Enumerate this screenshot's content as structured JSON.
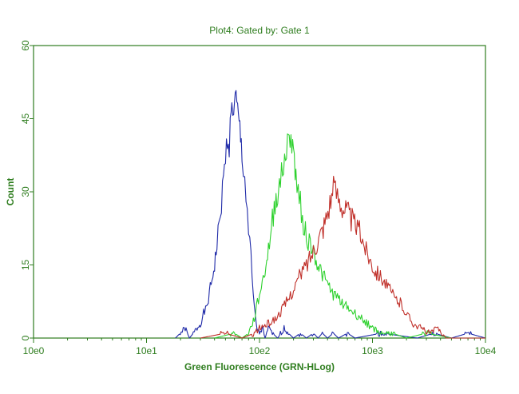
{
  "chart_data": {
    "type": "line",
    "title": "Plot4:  Gated by: Gate 1",
    "xlabel": "Green Fluorescence (GRN-HLog)",
    "ylabel": "Count",
    "x_scale": "log",
    "xlim": [
      1,
      10000
    ],
    "ylim": [
      0,
      60
    ],
    "x_tick_values": [
      1,
      10,
      100,
      1000,
      10000
    ],
    "x_tick_labels": [
      "10e0",
      "10e1",
      "10e2",
      "10e3",
      "10e4"
    ],
    "y_ticks": [
      0,
      15,
      30,
      45,
      60
    ],
    "y_tick_labels": [
      "0",
      "15",
      "30",
      "45",
      "60"
    ],
    "grid": false,
    "colors": {
      "frame": "#2e7d1e",
      "text": "#2e7d1e"
    },
    "series": [
      {
        "color": "#1f2aa8",
        "points": [
          [
            18,
            0
          ],
          [
            22,
            2
          ],
          [
            24,
            0
          ],
          [
            26,
            1
          ],
          [
            28,
            2
          ],
          [
            30,
            3
          ],
          [
            32,
            5
          ],
          [
            34,
            6
          ],
          [
            36,
            9
          ],
          [
            38,
            12
          ],
          [
            40,
            15
          ],
          [
            42,
            19
          ],
          [
            44,
            23
          ],
          [
            46,
            28
          ],
          [
            48,
            32
          ],
          [
            50,
            37
          ],
          [
            52,
            41
          ],
          [
            54,
            40
          ],
          [
            56,
            46
          ],
          [
            58,
            47
          ],
          [
            60,
            48
          ],
          [
            62,
            49
          ],
          [
            64,
            46
          ],
          [
            66,
            44
          ],
          [
            68,
            41
          ],
          [
            70,
            38
          ],
          [
            72,
            35
          ],
          [
            74,
            33
          ],
          [
            76,
            29
          ],
          [
            78,
            26
          ],
          [
            80,
            22
          ],
          [
            82,
            20
          ],
          [
            84,
            16
          ],
          [
            86,
            12
          ],
          [
            88,
            9
          ],
          [
            90,
            6
          ],
          [
            92,
            4
          ],
          [
            95,
            2
          ],
          [
            100,
            1
          ],
          [
            106,
            2
          ],
          [
            112,
            0
          ],
          [
            120,
            2
          ],
          [
            130,
            1
          ],
          [
            145,
            0
          ],
          [
            165,
            2
          ],
          [
            180,
            1
          ],
          [
            200,
            0
          ],
          [
            230,
            1
          ],
          [
            260,
            0
          ],
          [
            300,
            1
          ],
          [
            330,
            0
          ],
          [
            360,
            1
          ],
          [
            400,
            0
          ],
          [
            450,
            1
          ],
          [
            500,
            0
          ],
          [
            600,
            1
          ],
          [
            700,
            0
          ],
          [
            1200,
            1
          ],
          [
            2500,
            0
          ],
          [
            3500,
            1
          ],
          [
            5000,
            0
          ],
          [
            7000,
            1
          ],
          [
            10000,
            0
          ]
        ]
      },
      {
        "color": "#2ed12e",
        "points": [
          [
            40,
            0
          ],
          [
            60,
            1
          ],
          [
            70,
            0
          ],
          [
            80,
            1
          ],
          [
            90,
            4
          ],
          [
            100,
            9
          ],
          [
            110,
            13
          ],
          [
            120,
            18
          ],
          [
            130,
            24
          ],
          [
            140,
            29
          ],
          [
            150,
            31
          ],
          [
            160,
            34
          ],
          [
            170,
            38
          ],
          [
            180,
            40
          ],
          [
            190,
            42
          ],
          [
            200,
            38
          ],
          [
            210,
            33
          ],
          [
            220,
            30
          ],
          [
            230,
            28
          ],
          [
            240,
            25
          ],
          [
            250,
            22
          ],
          [
            270,
            20
          ],
          [
            300,
            18
          ],
          [
            330,
            15
          ],
          [
            360,
            13
          ],
          [
            400,
            11
          ],
          [
            450,
            9
          ],
          [
            500,
            8
          ],
          [
            560,
            7
          ],
          [
            620,
            6
          ],
          [
            700,
            5
          ],
          [
            800,
            4
          ],
          [
            900,
            3
          ],
          [
            1000,
            2
          ],
          [
            1200,
            1
          ],
          [
            1500,
            1
          ],
          [
            2000,
            0
          ],
          [
            3000,
            1
          ],
          [
            5000,
            0
          ],
          [
            10000,
            0
          ]
        ]
      },
      {
        "color": "#c0302a",
        "points": [
          [
            30,
            0
          ],
          [
            50,
            1
          ],
          [
            70,
            0
          ],
          [
            90,
            1
          ],
          [
            100,
            2
          ],
          [
            120,
            3
          ],
          [
            140,
            4
          ],
          [
            160,
            6
          ],
          [
            180,
            8
          ],
          [
            200,
            10
          ],
          [
            230,
            13
          ],
          [
            260,
            15
          ],
          [
            300,
            18
          ],
          [
            340,
            21
          ],
          [
            380,
            24
          ],
          [
            420,
            28
          ],
          [
            460,
            31
          ],
          [
            500,
            29
          ],
          [
            550,
            27
          ],
          [
            600,
            26
          ],
          [
            660,
            24
          ],
          [
            720,
            23
          ],
          [
            800,
            21
          ],
          [
            880,
            18
          ],
          [
            960,
            16
          ],
          [
            1050,
            14
          ],
          [
            1150,
            13
          ],
          [
            1250,
            12
          ],
          [
            1400,
            10
          ],
          [
            1600,
            8
          ],
          [
            1800,
            7
          ],
          [
            2000,
            5
          ],
          [
            2300,
            3
          ],
          [
            2700,
            2
          ],
          [
            3200,
            1
          ],
          [
            3800,
            2
          ],
          [
            4500,
            0
          ],
          [
            10000,
            0
          ]
        ]
      }
    ]
  }
}
